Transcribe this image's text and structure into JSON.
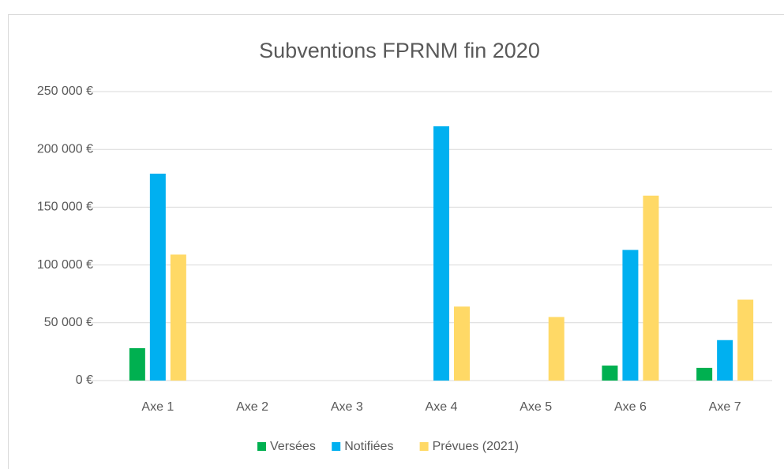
{
  "chart_data": {
    "type": "bar",
    "title": "Subventions FPRNM fin 2020",
    "categories": [
      "Axe 1",
      "Axe 2",
      "Axe 3",
      "Axe 4",
      "Axe 5",
      "Axe 6",
      "Axe 7"
    ],
    "series": [
      {
        "name": "Versées",
        "color": "#00b050",
        "values": [
          28000,
          0,
          0,
          0,
          0,
          13000,
          11000
        ]
      },
      {
        "name": "Notifiées",
        "color": "#00b0f0",
        "values": [
          179000,
          0,
          0,
          220000,
          0,
          113000,
          35000
        ]
      },
      {
        "name": "Prévues (2021)",
        "color": "#ffd966",
        "values": [
          109000,
          0,
          0,
          64000,
          55000,
          160000,
          70000
        ]
      }
    ],
    "ylim": [
      0,
      250000
    ],
    "yticks": [
      {
        "value": 0,
        "label": "0 €"
      },
      {
        "value": 50000,
        "label": "50 000 €"
      },
      {
        "value": 100000,
        "label": "100 000 €"
      },
      {
        "value": 150000,
        "label": "150 000 €"
      },
      {
        "value": 200000,
        "label": "200 000 €"
      },
      {
        "value": 250000,
        "label": "250 000 €"
      }
    ],
    "grid": true,
    "legend": "bottom"
  }
}
